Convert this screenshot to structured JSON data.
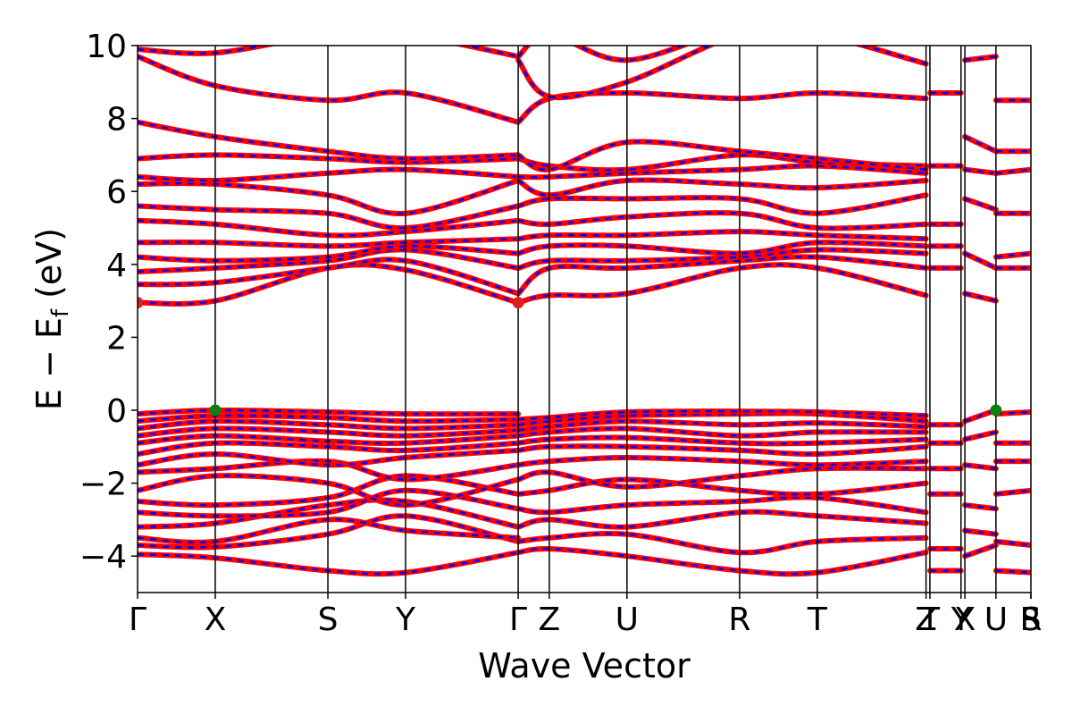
{
  "chart_data": {
    "type": "line",
    "title": "",
    "xlabel": "Wave Vector",
    "ylabel_parts": [
      "E − E",
      "f",
      " (eV)"
    ],
    "ylim": [
      -5,
      10
    ],
    "y_ticks": [
      {
        "value": 10,
        "label": "10"
      },
      {
        "value": 8,
        "label": "8"
      },
      {
        "value": 6,
        "label": "6"
      },
      {
        "value": 4,
        "label": "4"
      },
      {
        "value": 2,
        "label": "2"
      },
      {
        "value": 0,
        "label": "0"
      },
      {
        "value": -2,
        "label": "−2"
      },
      {
        "value": -4,
        "label": "−4"
      }
    ],
    "xlim": [
      0,
      11.5
    ],
    "k_points": [
      {
        "label": "Γ",
        "pos": 0.0
      },
      {
        "label": "X",
        "pos": 1.0
      },
      {
        "label": "S",
        "pos": 2.45
      },
      {
        "label": "Y",
        "pos": 3.45
      },
      {
        "label": "Γ",
        "pos": 4.9
      },
      {
        "label": "Z",
        "pos": 5.3
      },
      {
        "label": "U",
        "pos": 6.3
      },
      {
        "label": "R",
        "pos": 7.75
      },
      {
        "label": "T",
        "pos": 8.75
      },
      {
        "label": "Z",
        "pos": 10.15
      },
      {
        "label": "T",
        "pos": 10.2
      },
      {
        "label": "Y",
        "pos": 10.6
      },
      {
        "label": "X",
        "pos": 10.65
      },
      {
        "label": "U",
        "pos": 11.05
      },
      {
        "label": "S",
        "pos": 11.5
      },
      {
        "label": "R",
        "pos": 11.5
      }
    ],
    "band_colors": {
      "primary": "#ff0000",
      "secondary": "#0000ff"
    },
    "bands": [
      {
        "x": [
          0,
          1,
          2.45,
          3.45,
          4.9
        ],
        "y": [
          -3.95,
          -4.05,
          -4.4,
          -4.45,
          -3.9
        ]
      },
      {
        "x": [
          0,
          1,
          2.45,
          3.45,
          4.9
        ],
        "y": [
          -3.7,
          -3.75,
          -3.4,
          -2.9,
          -3.6
        ]
      },
      {
        "x": [
          0,
          1,
          2.45,
          3.45,
          4.9
        ],
        "y": [
          -3.5,
          -3.6,
          -3.0,
          -3.3,
          -3.5
        ]
      },
      {
        "x": [
          0,
          1,
          2.45,
          3.45,
          4.9
        ],
        "y": [
          -3.2,
          -3.1,
          -2.6,
          -2.5,
          -3.2
        ]
      },
      {
        "x": [
          0,
          1,
          2.45,
          3.45,
          4.9
        ],
        "y": [
          -2.8,
          -2.9,
          -2.8,
          -2.2,
          -2.7
        ]
      },
      {
        "x": [
          0,
          1,
          2.45,
          3.45,
          4.9
        ],
        "y": [
          -2.5,
          -2.6,
          -2.4,
          -1.8,
          -2.3
        ]
      },
      {
        "x": [
          0,
          1,
          2.45,
          3.45,
          4.9
        ],
        "y": [
          -2.2,
          -1.8,
          -2.0,
          -2.6,
          -1.9
        ]
      },
      {
        "x": [
          0,
          1,
          2.45,
          3.45,
          4.9
        ],
        "y": [
          -1.7,
          -1.6,
          -1.4,
          -1.9,
          -1.5
        ]
      },
      {
        "x": [
          0,
          1,
          2.45,
          3.45,
          4.9
        ],
        "y": [
          -1.5,
          -1.2,
          -1.5,
          -1.3,
          -1.1
        ]
      },
      {
        "x": [
          0,
          1,
          2.45,
          3.45,
          4.9
        ],
        "y": [
          -1.2,
          -0.9,
          -1.0,
          -1.1,
          -0.9
        ]
      },
      {
        "x": [
          0,
          1,
          2.45,
          3.45,
          4.9
        ],
        "y": [
          -0.9,
          -0.7,
          -0.85,
          -0.9,
          -0.7
        ]
      },
      {
        "x": [
          0,
          1,
          2.45,
          3.45,
          4.9
        ],
        "y": [
          -0.7,
          -0.5,
          -0.6,
          -0.7,
          -0.55
        ]
      },
      {
        "x": [
          0,
          1,
          2.45,
          3.45,
          4.9
        ],
        "y": [
          -0.5,
          -0.3,
          -0.4,
          -0.5,
          -0.4
        ]
      },
      {
        "x": [
          0,
          1,
          2.45,
          3.45,
          4.9
        ],
        "y": [
          -0.3,
          -0.15,
          -0.2,
          -0.3,
          -0.25
        ]
      },
      {
        "x": [
          0,
          1,
          2.45,
          3.45,
          4.9
        ],
        "y": [
          -0.1,
          0.0,
          -0.05,
          -0.1,
          -0.1
        ]
      },
      {
        "x": [
          0,
          1,
          2.45,
          3.45,
          4.9
        ],
        "y": [
          2.95,
          3.0,
          3.9,
          3.85,
          2.95
        ]
      },
      {
        "x": [
          0,
          1,
          2.45,
          3.45,
          4.9
        ],
        "y": [
          3.45,
          3.5,
          3.9,
          4.1,
          3.2
        ]
      },
      {
        "x": [
          0,
          1,
          2.45,
          3.45,
          4.9
        ],
        "y": [
          3.8,
          3.9,
          4.1,
          4.4,
          3.9
        ]
      },
      {
        "x": [
          0,
          1,
          2.45,
          3.45,
          4.9
        ],
        "y": [
          4.2,
          4.1,
          4.2,
          4.5,
          4.3
        ]
      },
      {
        "x": [
          0,
          1,
          2.45,
          3.45,
          4.9
        ],
        "y": [
          4.6,
          4.6,
          4.5,
          4.6,
          4.7
        ]
      },
      {
        "x": [
          0,
          1,
          2.45,
          3.45,
          4.9
        ],
        "y": [
          5.2,
          5.1,
          4.8,
          4.9,
          5.2
        ]
      },
      {
        "x": [
          0,
          1,
          2.45,
          3.45,
          4.9
        ],
        "y": [
          5.6,
          5.5,
          5.4,
          5.0,
          5.6
        ]
      },
      {
        "x": [
          0,
          1,
          2.45,
          3.45,
          4.9
        ],
        "y": [
          6.2,
          6.2,
          5.9,
          5.4,
          6.3
        ]
      },
      {
        "x": [
          0,
          1,
          2.45,
          3.45,
          4.9
        ],
        "y": [
          6.4,
          6.3,
          6.5,
          6.6,
          6.4
        ]
      },
      {
        "x": [
          0,
          1,
          2.45,
          3.45,
          4.9
        ],
        "y": [
          6.9,
          7.0,
          6.9,
          6.8,
          6.9
        ]
      },
      {
        "x": [
          0,
          1,
          2.45,
          3.45,
          4.9
        ],
        "y": [
          7.9,
          7.5,
          7.1,
          6.9,
          7.0
        ]
      },
      {
        "x": [
          0,
          1,
          2.45,
          3.45,
          4.9
        ],
        "y": [
          9.7,
          8.9,
          8.5,
          8.7,
          7.9
        ]
      },
      {
        "x": [
          0,
          1,
          2.45,
          3.45,
          4.9
        ],
        "y": [
          9.9,
          9.8,
          10.3,
          10.3,
          9.7
        ]
      },
      {
        "x": [
          4.9,
          5.3,
          6.3,
          7.75,
          8.75,
          10.15
        ],
        "y": [
          -3.9,
          -3.8,
          -4.0,
          -4.4,
          -4.45,
          -3.9
        ]
      },
      {
        "x": [
          4.9,
          5.3,
          6.3,
          7.75,
          8.75,
          10.15
        ],
        "y": [
          -3.6,
          -3.5,
          -3.4,
          -3.9,
          -3.6,
          -3.5
        ]
      },
      {
        "x": [
          4.9,
          5.3,
          6.3,
          7.75,
          8.75,
          10.15
        ],
        "y": [
          -3.2,
          -3.0,
          -3.2,
          -2.8,
          -2.9,
          -3.1
        ]
      },
      {
        "x": [
          4.9,
          5.3,
          6.3,
          7.75,
          8.75,
          10.15
        ],
        "y": [
          -2.7,
          -2.8,
          -2.6,
          -2.5,
          -2.4,
          -2.8
        ]
      },
      {
        "x": [
          4.9,
          5.3,
          6.3,
          7.75,
          8.75,
          10.15
        ],
        "y": [
          -2.3,
          -2.2,
          -1.9,
          -2.2,
          -2.3,
          -2.0
        ]
      },
      {
        "x": [
          4.9,
          5.3,
          6.3,
          7.75,
          8.75,
          10.15
        ],
        "y": [
          -1.9,
          -1.7,
          -2.1,
          -1.8,
          -1.6,
          -1.6
        ]
      },
      {
        "x": [
          4.9,
          5.3,
          6.3,
          7.75,
          8.75,
          10.15
        ],
        "y": [
          -1.5,
          -1.4,
          -1.3,
          -1.4,
          -1.5,
          -1.4
        ]
      },
      {
        "x": [
          4.9,
          5.3,
          6.3,
          7.75,
          8.75,
          10.15
        ],
        "y": [
          -1.1,
          -1.0,
          -1.0,
          -1.1,
          -1.2,
          -1.0
        ]
      },
      {
        "x": [
          4.9,
          5.3,
          6.3,
          7.75,
          8.75,
          10.15
        ],
        "y": [
          -0.9,
          -0.8,
          -0.75,
          -0.9,
          -0.9,
          -0.8
        ]
      },
      {
        "x": [
          4.9,
          5.3,
          6.3,
          7.75,
          8.75,
          10.15
        ],
        "y": [
          -0.7,
          -0.6,
          -0.5,
          -0.7,
          -0.6,
          -0.6
        ]
      },
      {
        "x": [
          4.9,
          5.3,
          6.3,
          7.75,
          8.75,
          10.15
        ],
        "y": [
          -0.55,
          -0.45,
          -0.3,
          -0.4,
          -0.35,
          -0.45
        ]
      },
      {
        "x": [
          4.9,
          5.3,
          6.3,
          7.75,
          8.75,
          10.15
        ],
        "y": [
          -0.4,
          -0.3,
          -0.15,
          -0.1,
          -0.1,
          -0.3
        ]
      },
      {
        "x": [
          4.9,
          5.3,
          6.3,
          7.75,
          8.75,
          10.15
        ],
        "y": [
          -0.25,
          -0.2,
          -0.05,
          -0.03,
          -0.05,
          -0.15
        ]
      },
      {
        "x": [
          4.9,
          5.3,
          6.3,
          7.75,
          8.75,
          10.15
        ],
        "y": [
          2.95,
          3.15,
          3.2,
          3.9,
          3.9,
          3.15
        ]
      },
      {
        "x": [
          4.9,
          5.3,
          6.3,
          7.75,
          8.75,
          10.15
        ],
        "y": [
          3.2,
          3.9,
          3.9,
          4.1,
          4.2,
          3.9
        ]
      },
      {
        "x": [
          4.9,
          5.3,
          6.3,
          7.75,
          8.75,
          10.15
        ],
        "y": [
          3.9,
          4.1,
          4.1,
          4.2,
          4.4,
          4.3
        ]
      },
      {
        "x": [
          4.9,
          5.3,
          6.3,
          7.75,
          8.75,
          10.15
        ],
        "y": [
          4.3,
          4.5,
          4.5,
          4.3,
          4.6,
          4.5
        ]
      },
      {
        "x": [
          4.9,
          5.3,
          6.3,
          7.75,
          8.75,
          10.15
        ],
        "y": [
          4.7,
          4.8,
          4.8,
          4.9,
          4.8,
          4.7
        ]
      },
      {
        "x": [
          4.9,
          5.3,
          6.3,
          7.75,
          8.75,
          10.15
        ],
        "y": [
          5.2,
          5.1,
          5.3,
          5.4,
          5.0,
          5.1
        ]
      },
      {
        "x": [
          4.9,
          5.3,
          6.3,
          7.75,
          8.75,
          10.15
        ],
        "y": [
          5.6,
          5.8,
          5.8,
          5.8,
          5.4,
          5.9
        ]
      },
      {
        "x": [
          4.9,
          5.3,
          6.3,
          7.75,
          8.75,
          10.15
        ],
        "y": [
          6.3,
          5.9,
          6.3,
          6.2,
          6.1,
          6.3
        ]
      },
      {
        "x": [
          4.9,
          5.3,
          6.3,
          7.75,
          8.75,
          10.15
        ],
        "y": [
          6.4,
          6.4,
          6.5,
          6.6,
          6.7,
          6.5
        ]
      },
      {
        "x": [
          4.9,
          5.3,
          6.3,
          7.75,
          8.75,
          10.15
        ],
        "y": [
          6.9,
          6.7,
          6.6,
          7.0,
          6.8,
          6.7
        ]
      },
      {
        "x": [
          4.9,
          5.3,
          6.3,
          7.75,
          8.75,
          10.15
        ],
        "y": [
          7.0,
          6.6,
          7.35,
          7.1,
          6.9,
          6.6
        ]
      },
      {
        "x": [
          4.9,
          5.3,
          6.3,
          7.75,
          8.75,
          10.15
        ],
        "y": [
          7.9,
          8.55,
          8.7,
          8.55,
          8.7,
          8.55
        ]
      },
      {
        "x": [
          4.9,
          5.3,
          6.3,
          7.75,
          8.75,
          10.15
        ],
        "y": [
          9.6,
          8.6,
          9.0,
          10.3,
          10.3,
          9.5
        ]
      },
      {
        "x": [
          4.9,
          5.3,
          6.3,
          7.75,
          8.75,
          10.15
        ],
        "y": [
          9.7,
          10.3,
          9.6,
          10.5,
          10.5,
          10.3
        ]
      },
      {
        "x": [
          10.2,
          10.6
        ],
        "y": [
          -4.4,
          -4.4
        ]
      },
      {
        "x": [
          10.2,
          10.6
        ],
        "y": [
          -3.8,
          -3.8
        ]
      },
      {
        "x": [
          10.2,
          10.6
        ],
        "y": [
          -2.3,
          -2.3
        ]
      },
      {
        "x": [
          10.2,
          10.6
        ],
        "y": [
          -1.6,
          -1.6
        ]
      },
      {
        "x": [
          10.2,
          10.6
        ],
        "y": [
          -0.9,
          -0.9
        ]
      },
      {
        "x": [
          10.2,
          10.6
        ],
        "y": [
          -0.4,
          -0.4
        ]
      },
      {
        "x": [
          10.2,
          10.6
        ],
        "y": [
          3.9,
          3.9
        ]
      },
      {
        "x": [
          10.2,
          10.6
        ],
        "y": [
          4.5,
          4.5
        ]
      },
      {
        "x": [
          10.2,
          10.6
        ],
        "y": [
          5.1,
          5.1
        ]
      },
      {
        "x": [
          10.2,
          10.6
        ],
        "y": [
          6.7,
          6.7
        ]
      },
      {
        "x": [
          10.2,
          10.6
        ],
        "y": [
          8.7,
          8.7
        ]
      },
      {
        "x": [
          10.65,
          11.05
        ],
        "y": [
          -4.0,
          -3.7
        ]
      },
      {
        "x": [
          10.65,
          11.05
        ],
        "y": [
          -3.3,
          -3.4
        ]
      },
      {
        "x": [
          10.65,
          11.05
        ],
        "y": [
          -2.6,
          -2.7
        ]
      },
      {
        "x": [
          10.65,
          11.05
        ],
        "y": [
          -1.5,
          -1.6
        ]
      },
      {
        "x": [
          10.65,
          11.05
        ],
        "y": [
          -0.8,
          -0.6
        ]
      },
      {
        "x": [
          10.65,
          11.05
        ],
        "y": [
          -0.3,
          0.0
        ]
      },
      {
        "x": [
          10.65,
          11.05
        ],
        "y": [
          3.2,
          3.0
        ]
      },
      {
        "x": [
          10.65,
          11.05
        ],
        "y": [
          4.3,
          3.9
        ]
      },
      {
        "x": [
          10.65,
          11.05
        ],
        "y": [
          5.8,
          5.5
        ]
      },
      {
        "x": [
          10.65,
          11.05
        ],
        "y": [
          6.6,
          6.5
        ]
      },
      {
        "x": [
          10.65,
          11.05
        ],
        "y": [
          7.5,
          7.1
        ]
      },
      {
        "x": [
          10.65,
          11.05
        ],
        "y": [
          9.6,
          9.7
        ]
      },
      {
        "x": [
          11.05,
          11.5
        ],
        "y": [
          -4.4,
          -4.45
        ]
      },
      {
        "x": [
          11.05,
          11.5
        ],
        "y": [
          -3.6,
          -3.7
        ]
      },
      {
        "x": [
          11.05,
          11.5
        ],
        "y": [
          -2.3,
          -2.2
        ]
      },
      {
        "x": [
          11.05,
          11.5
        ],
        "y": [
          -1.4,
          -1.4
        ]
      },
      {
        "x": [
          11.05,
          11.5
        ],
        "y": [
          -0.9,
          -0.9
        ]
      },
      {
        "x": [
          11.05,
          11.5
        ],
        "y": [
          -0.1,
          -0.05
        ]
      },
      {
        "x": [
          11.05,
          11.5
        ],
        "y": [
          3.9,
          3.9
        ]
      },
      {
        "x": [
          11.05,
          11.5
        ],
        "y": [
          4.2,
          4.3
        ]
      },
      {
        "x": [
          11.05,
          11.5
        ],
        "y": [
          5.4,
          5.4
        ]
      },
      {
        "x": [
          11.05,
          11.5
        ],
        "y": [
          6.5,
          6.6
        ]
      },
      {
        "x": [
          11.05,
          11.5
        ],
        "y": [
          7.1,
          7.1
        ]
      },
      {
        "x": [
          11.05,
          11.5
        ],
        "y": [
          8.5,
          8.5
        ]
      }
    ],
    "markers": [
      {
        "kind": "cbm",
        "x": 0.0,
        "y": 2.95,
        "color": "#e02020"
      },
      {
        "kind": "cbm",
        "x": 4.9,
        "y": 2.95,
        "color": "#e02020"
      },
      {
        "kind": "vbm",
        "x": 1.0,
        "y": 0.0,
        "color": "#108010"
      },
      {
        "kind": "vbm",
        "x": 11.05,
        "y": 0.0,
        "color": "#108010"
      }
    ],
    "grid": false,
    "legend": "none"
  }
}
